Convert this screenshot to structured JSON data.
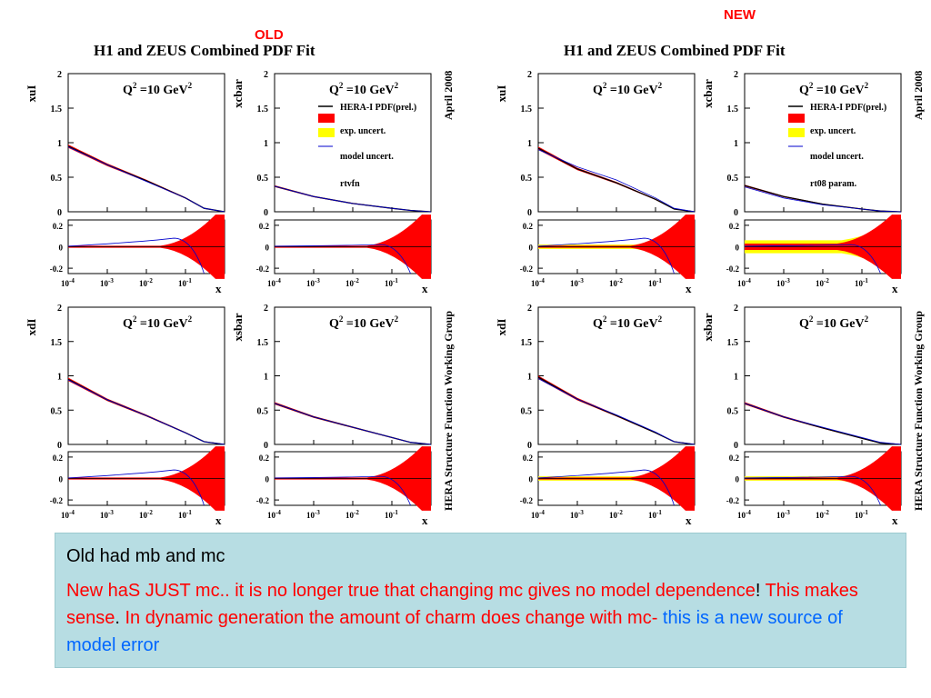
{
  "labels": {
    "old": "OLD",
    "new": "NEW"
  },
  "figures": [
    {
      "title": "H1 and ZEUS Combined PDF Fit",
      "date": "April 2008",
      "group": "HERA Structure Function Working Group",
      "legend": [
        "HERA-I PDF(prel.)",
        "exp. uncert.",
        "model uncert.",
        "rtvfn"
      ]
    },
    {
      "title": "H1 and ZEUS Combined PDF Fit",
      "date": "April 2008",
      "group": "HERA Structure Function Working Group",
      "legend": [
        "HERA-I PDF(prel.)",
        "exp. uncert.",
        "model uncert.",
        "rt08 param."
      ]
    }
  ],
  "note": {
    "line1": "Old had mb and mc",
    "p2_red1": "New haS JUST mc.. it is no longer true that changing mc gives no model dependence",
    "p2_black1": "!",
    "p2_red2": " This makes sense",
    "p2_black2": ".",
    "p2_red3": " In dynamic generation the amount of charm does change with mc- ",
    "p2_blue": "this is a new source of model error"
  },
  "chart_data": [
    {
      "type": "line",
      "figure": "OLD",
      "panel": "xuI",
      "q2_label": "Q² =10 GeV²",
      "xlabel": "x",
      "xscale": "log",
      "xlim": [
        0.0001,
        1
      ],
      "ylim": [
        0,
        2
      ],
      "x": [
        0.0001,
        0.001,
        0.01,
        0.1,
        0.3,
        1
      ],
      "series": [
        {
          "name": "HERA-I PDF(prel.)",
          "values": [
            0.95,
            0.68,
            0.45,
            0.2,
            0.05,
            0
          ]
        },
        {
          "name": "rtvfn",
          "values": [
            0.94,
            0.68,
            0.44,
            0.2,
            0.05,
            0
          ]
        }
      ],
      "ratio_ylim": [
        -0.25,
        0.25
      ]
    },
    {
      "type": "line",
      "figure": "OLD",
      "panel": "xcbar",
      "q2_label": "Q² =10 GeV²",
      "xlabel": "x",
      "xscale": "log",
      "xlim": [
        0.0001,
        1
      ],
      "ylim": [
        0,
        2
      ],
      "x": [
        0.0001,
        0.001,
        0.01,
        0.1,
        0.3,
        1
      ],
      "series": [
        {
          "name": "HERA-I PDF(prel.)",
          "values": [
            0.37,
            0.22,
            0.12,
            0.05,
            0.02,
            0
          ]
        },
        {
          "name": "rtvfn",
          "values": [
            0.37,
            0.22,
            0.12,
            0.05,
            0.02,
            0
          ]
        }
      ],
      "ratio_ylim": [
        -0.25,
        0.25
      ]
    },
    {
      "type": "line",
      "figure": "OLD",
      "panel": "xdI",
      "q2_label": "Q² =10 GeV²",
      "xlabel": "x",
      "xscale": "log",
      "xlim": [
        0.0001,
        1
      ],
      "ylim": [
        0,
        2
      ],
      "x": [
        0.0001,
        0.001,
        0.01,
        0.1,
        0.3,
        1
      ],
      "series": [
        {
          "name": "HERA-I PDF(prel.)",
          "values": [
            0.95,
            0.65,
            0.42,
            0.17,
            0.04,
            0
          ]
        },
        {
          "name": "rtvfn",
          "values": [
            0.94,
            0.65,
            0.42,
            0.17,
            0.04,
            0
          ]
        }
      ],
      "ratio_ylim": [
        -0.25,
        0.25
      ]
    },
    {
      "type": "line",
      "figure": "OLD",
      "panel": "xsbar",
      "q2_label": "Q² =10 GeV²",
      "xlabel": "x",
      "xscale": "log",
      "xlim": [
        0.0001,
        1
      ],
      "ylim": [
        0,
        2
      ],
      "x": [
        0.0001,
        0.001,
        0.01,
        0.1,
        0.3,
        1
      ],
      "series": [
        {
          "name": "HERA-I PDF(prel.)",
          "values": [
            0.6,
            0.4,
            0.25,
            0.1,
            0.03,
            0
          ]
        },
        {
          "name": "rtvfn",
          "values": [
            0.6,
            0.4,
            0.25,
            0.1,
            0.03,
            0
          ]
        }
      ],
      "ratio_ylim": [
        -0.25,
        0.25
      ]
    },
    {
      "type": "line",
      "figure": "NEW",
      "panel": "xuI",
      "q2_label": "Q² =10 GeV²",
      "xlabel": "x",
      "xscale": "log",
      "xlim": [
        0.0001,
        1
      ],
      "ylim": [
        0,
        2
      ],
      "x": [
        0.0001,
        0.001,
        0.01,
        0.1,
        0.3,
        1
      ],
      "series": [
        {
          "name": "HERA-I PDF(prel.)",
          "values": [
            0.92,
            0.62,
            0.42,
            0.18,
            0.04,
            0
          ]
        },
        {
          "name": "rt08 param.",
          "values": [
            0.9,
            0.65,
            0.46,
            0.2,
            0.05,
            0
          ]
        }
      ],
      "ratio_ylim": [
        -0.25,
        0.25
      ]
    },
    {
      "type": "line",
      "figure": "NEW",
      "panel": "xcbar",
      "q2_label": "Q² =10 GeV²",
      "xlabel": "x",
      "xscale": "log",
      "xlim": [
        0.0001,
        1
      ],
      "ylim": [
        0,
        2
      ],
      "x": [
        0.0001,
        0.001,
        0.01,
        0.1,
        0.3,
        1
      ],
      "series": [
        {
          "name": "HERA-I PDF(prel.)",
          "values": [
            0.38,
            0.22,
            0.11,
            0.04,
            0.01,
            0
          ]
        },
        {
          "name": "rt08 param.",
          "values": [
            0.36,
            0.2,
            0.1,
            0.04,
            0.01,
            0
          ]
        }
      ],
      "ratio_ylim": [
        -0.25,
        0.25
      ]
    },
    {
      "type": "line",
      "figure": "NEW",
      "panel": "xdI",
      "q2_label": "Q² =10 GeV²",
      "xlabel": "x",
      "xscale": "log",
      "xlim": [
        0.0001,
        1
      ],
      "ylim": [
        0,
        2
      ],
      "x": [
        0.0001,
        0.001,
        0.01,
        0.1,
        0.3,
        1
      ],
      "series": [
        {
          "name": "HERA-I PDF(prel.)",
          "values": [
            0.98,
            0.66,
            0.42,
            0.17,
            0.04,
            0
          ]
        },
        {
          "name": "rt08 param.",
          "values": [
            0.96,
            0.66,
            0.43,
            0.18,
            0.04,
            0
          ]
        }
      ],
      "ratio_ylim": [
        -0.25,
        0.25
      ]
    },
    {
      "type": "line",
      "figure": "NEW",
      "panel": "xsbar",
      "q2_label": "Q² =10 GeV²",
      "xlabel": "x",
      "xscale": "log",
      "xlim": [
        0.0001,
        1
      ],
      "ylim": [
        0,
        2
      ],
      "x": [
        0.0001,
        0.001,
        0.01,
        0.1,
        0.3,
        1
      ],
      "series": [
        {
          "name": "HERA-I PDF(prel.)",
          "values": [
            0.6,
            0.4,
            0.24,
            0.09,
            0.02,
            0
          ]
        },
        {
          "name": "rt08 param.",
          "values": [
            0.6,
            0.4,
            0.25,
            0.1,
            0.03,
            0
          ]
        }
      ],
      "ratio_ylim": [
        -0.25,
        0.25
      ]
    }
  ],
  "colors": {
    "central": "#000000",
    "exp": "#ff0000",
    "model": "#ffff00",
    "param": "#0000cc",
    "note_bg": "#b7dde3",
    "alt_red": "#ff0000",
    "alt_blue": "#0066ff"
  }
}
